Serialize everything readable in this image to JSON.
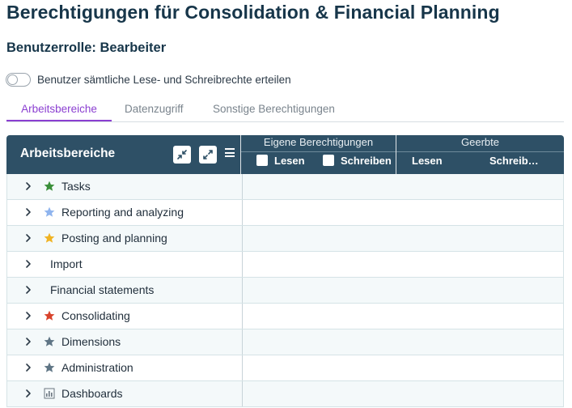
{
  "page": {
    "title": "Berechtigungen für Consolidation & Financial Planning",
    "role_title": "Benutzerrolle: Bearbeiter"
  },
  "toggle": {
    "label": "Benutzer sämtliche Lese- und Schreibrechte erteilen",
    "on": false
  },
  "tabs": [
    {
      "label": "Arbeitsbereiche",
      "active": true
    },
    {
      "label": "Datenzugriff",
      "active": false
    },
    {
      "label": "Sonstige Berechtigungen",
      "active": false
    }
  ],
  "grid": {
    "header": {
      "title": "Arbeitsbereiche",
      "own_group": "Eigene Berechtigungen",
      "own_read": "Lesen",
      "own_write": "Schreiben",
      "inherited_group": "Geerbte",
      "inherited_read": "Lesen",
      "inherited_write": "Schreib…"
    },
    "rows": [
      {
        "label": "Tasks",
        "icon": "star-icon",
        "icon_color": "#3a8f3a"
      },
      {
        "label": "Reporting and analyzing",
        "icon": "star-icon",
        "icon_color": "#8fb4ee"
      },
      {
        "label": "Posting and planning",
        "icon": "star-icon",
        "icon_color": "#f0b323"
      },
      {
        "label": "Import",
        "icon": "",
        "icon_color": ""
      },
      {
        "label": "Financial statements",
        "icon": "",
        "icon_color": ""
      },
      {
        "label": "Consolidating",
        "icon": "star-icon",
        "icon_color": "#d8432c"
      },
      {
        "label": "Dimensions",
        "icon": "star-icon",
        "icon_color": "#5f7585"
      },
      {
        "label": "Administration",
        "icon": "star-icon",
        "icon_color": "#5f7585"
      },
      {
        "label": "Dashboards",
        "icon": "bar-chart-icon",
        "icon_color": "#6b7680"
      }
    ]
  },
  "colors": {
    "accent": "#8b3fd1",
    "header_bg": "#2e5066",
    "title_text": "#17364a"
  }
}
